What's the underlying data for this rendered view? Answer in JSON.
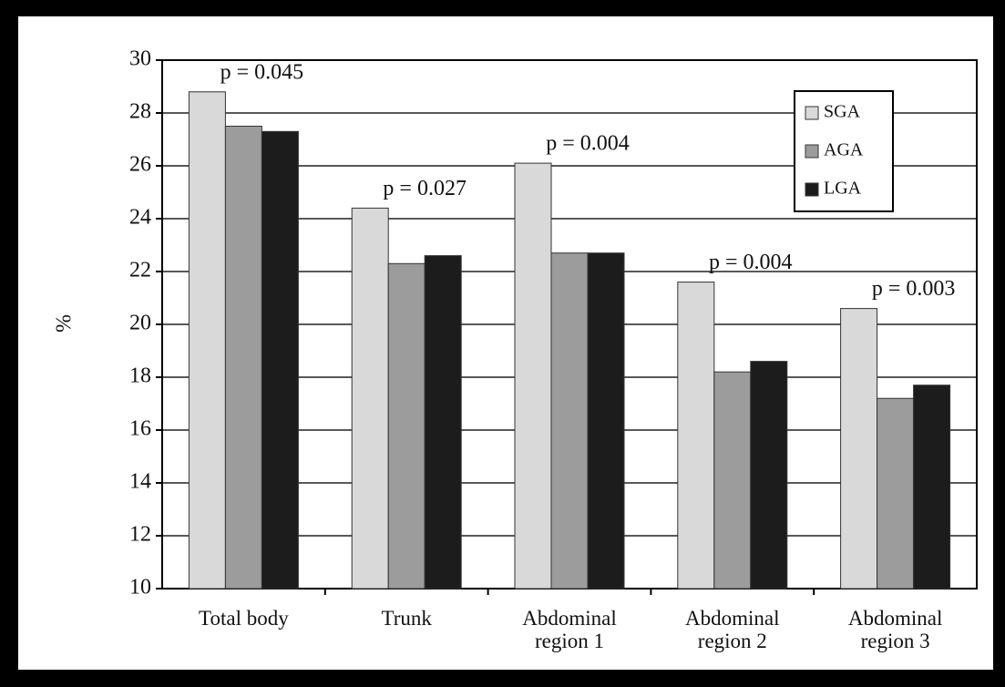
{
  "chart_data": {
    "type": "bar",
    "ylabel": "%",
    "categories": [
      "Total body",
      "Trunk",
      "Abdominal region 1",
      "Abdominal region 2",
      "Abdominal region 3"
    ],
    "series": [
      {
        "name": "SGA",
        "color": "#d9d9d9",
        "values": [
          28.8,
          24.4,
          26.1,
          21.6,
          20.6
        ]
      },
      {
        "name": "AGA",
        "color": "#9c9c9c",
        "values": [
          27.5,
          22.3,
          22.7,
          18.2,
          17.2
        ]
      },
      {
        "name": "LGA",
        "color": "#1c1c1c",
        "values": [
          27.3,
          22.6,
          22.7,
          18.6,
          17.7
        ]
      }
    ],
    "annotations": [
      "p = 0.045",
      "p = 0.027",
      "p = 0.004",
      "p = 0.004",
      "p = 0.003"
    ],
    "ylim": [
      10,
      30
    ],
    "yticks": [
      10,
      12,
      14,
      16,
      18,
      20,
      22,
      24,
      26,
      28,
      30
    ],
    "grid": true,
    "legend": "top-right"
  }
}
